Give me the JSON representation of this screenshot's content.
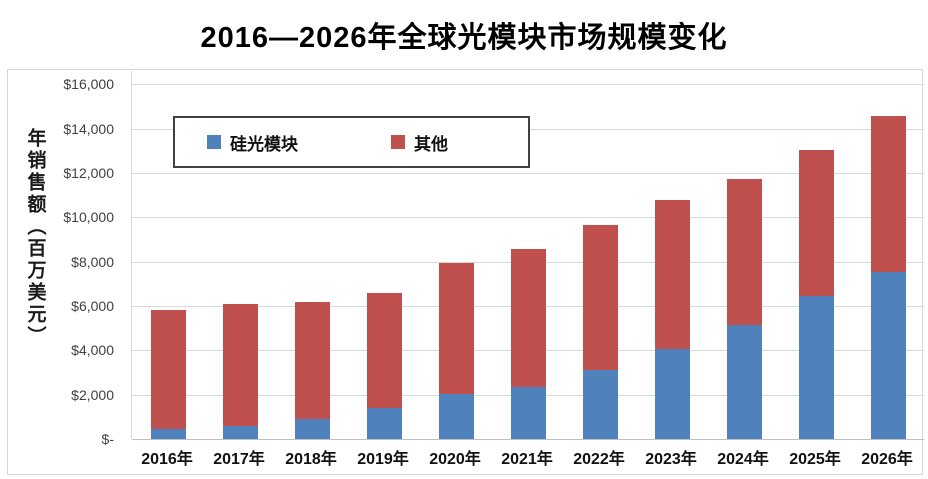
{
  "title": "2016—2026年全球光模块市场规模变化",
  "chart_data": {
    "type": "bar",
    "stacked": true,
    "title": "2016—2026年全球光模块市场规模变化",
    "xlabel": "",
    "ylabel": "年销售额（百万美元）",
    "categories": [
      "2016年",
      "2017年",
      "2018年",
      "2019年",
      "2020年",
      "2021年",
      "2022年",
      "2023年",
      "2024年",
      "2025年",
      "2026年"
    ],
    "series": [
      {
        "name": "硅光模块",
        "color": "#4F81BD",
        "values": [
          450,
          600,
          900,
          1400,
          2050,
          2350,
          3100,
          4050,
          5150,
          6450,
          7550
        ]
      },
      {
        "name": "其他",
        "color": "#C0504D",
        "values": [
          5350,
          5500,
          5300,
          5200,
          5900,
          6200,
          6550,
          6750,
          6600,
          6600,
          7000
        ]
      }
    ],
    "totals": [
      5800,
      6100,
      6200,
      6600,
      7950,
      8550,
      9650,
      10800,
      11750,
      13050,
      14550
    ],
    "y_ticks": [
      "$-",
      "$2,000",
      "$4,000",
      "$6,000",
      "$8,000",
      "$10,000",
      "$12,000",
      "$14,000",
      "$16,000"
    ],
    "y_tick_values": [
      0,
      2000,
      4000,
      6000,
      8000,
      10000,
      12000,
      14000,
      16000
    ],
    "ylim": [
      0,
      16600
    ],
    "grid": true,
    "legend_position": "top-left-inside",
    "unit": "百万美元"
  },
  "colors": {
    "series_blue": "#4F81BD",
    "series_red": "#C0504D",
    "gridline": "#D9D9D9",
    "axis_line": "#BFBFBF",
    "chart_border": "#D6D6D6",
    "legend_border": "#404040",
    "title_text": "#000000",
    "tick_text": "#404040"
  }
}
